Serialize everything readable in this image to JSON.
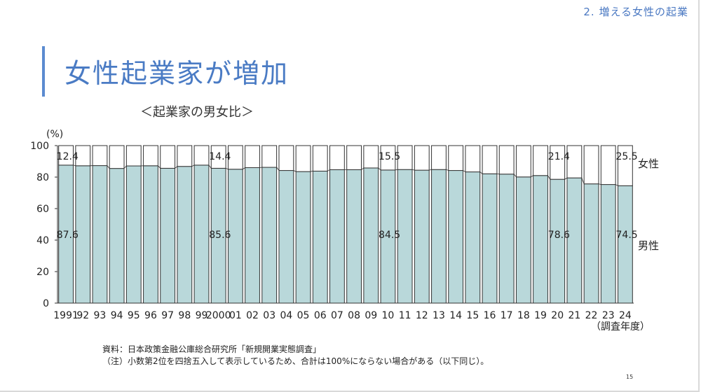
{
  "header": {
    "section": "2. 増える女性の起業",
    "title": "女性起業家が増加",
    "subtitle": "＜起業家の男女比＞"
  },
  "footer": {
    "source": "資料：日本政策金融公庫総合研究所「新規開業実態調査」",
    "note": "（注）小数第2位を四捨五入して表示しているため、合計は100%にならない場合がある（以下同じ）。",
    "page": "15"
  },
  "colors": {
    "accent": "#4a7bc4",
    "male_bar": "#b9d8da",
    "female_bar": "#ffffff",
    "bar_stroke": "#333333"
  },
  "chart_data": {
    "type": "bar",
    "stacked": true,
    "ylabel": "(%)",
    "xlabel": "（調査年度）",
    "ylim": [
      0,
      100
    ],
    "yticks": [
      0,
      20,
      40,
      60,
      80,
      100
    ],
    "categories": [
      "1991",
      "92",
      "93",
      "94",
      "95",
      "96",
      "97",
      "98",
      "99",
      "2000",
      "01",
      "02",
      "03",
      "04",
      "05",
      "06",
      "07",
      "08",
      "09",
      "10",
      "11",
      "12",
      "13",
      "14",
      "15",
      "16",
      "17",
      "18",
      "19",
      "20",
      "21",
      "22",
      "23",
      "24"
    ],
    "series": [
      {
        "name": "男性",
        "values": [
          87.6,
          87.2,
          87.3,
          85.5,
          87.1,
          87.2,
          85.6,
          86.8,
          87.6,
          85.6,
          85.0,
          86.0,
          86.2,
          84.2,
          83.5,
          83.8,
          84.7,
          84.7,
          85.8,
          84.5,
          84.8,
          84.4,
          84.8,
          84.2,
          83.3,
          82.1,
          81.9,
          80.1,
          81.0,
          78.6,
          79.5,
          75.7,
          75.3,
          74.5
        ]
      },
      {
        "name": "女性",
        "values": [
          12.4,
          12.8,
          12.7,
          14.5,
          12.9,
          12.8,
          14.4,
          13.2,
          12.4,
          14.4,
          15.0,
          14.0,
          13.8,
          15.8,
          16.5,
          16.2,
          15.3,
          15.3,
          14.2,
          15.5,
          15.2,
          15.6,
          15.2,
          15.8,
          16.7,
          17.9,
          18.1,
          19.9,
          19.0,
          21.4,
          20.5,
          24.3,
          24.7,
          25.5
        ]
      }
    ],
    "labeled_points": [
      {
        "category": "1991",
        "female": "12.4",
        "male": "87.6"
      },
      {
        "category": "2000",
        "female": "14.4",
        "male": "85.6"
      },
      {
        "category": "10",
        "female": "15.5",
        "male": "84.5"
      },
      {
        "category": "20",
        "female": "21.4",
        "male": "78.6"
      },
      {
        "category": "24",
        "female": "25.5",
        "male": "74.5"
      }
    ]
  }
}
